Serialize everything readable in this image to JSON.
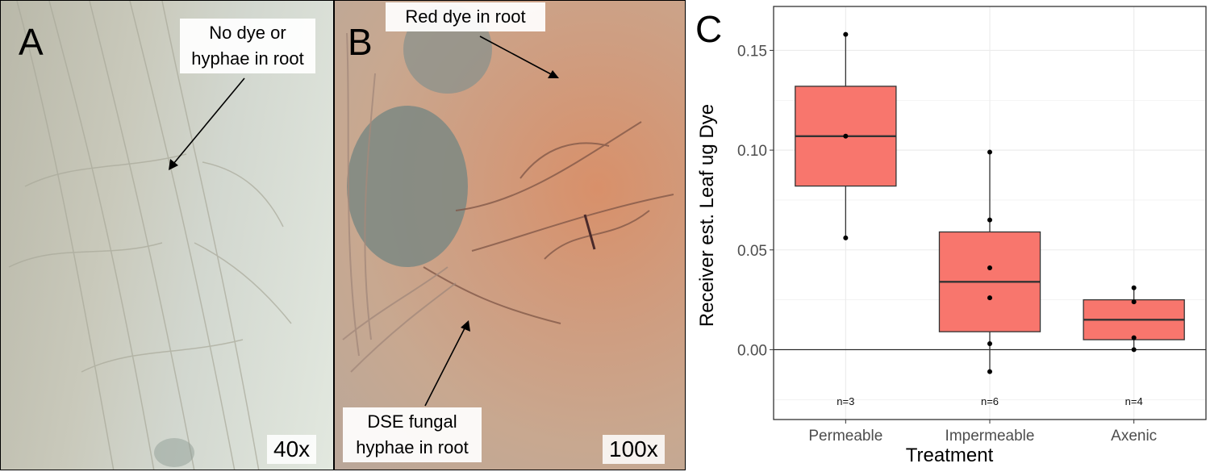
{
  "panel_a": {
    "letter": "A",
    "callout": "No dye or\nhyphae in root",
    "magnification": "40x"
  },
  "panel_b": {
    "letter": "B",
    "callout_top": "Red dye in root",
    "callout_bottom": "DSE fungal\nhyphae in root",
    "magnification": "100x"
  },
  "panel_c": {
    "letter": "C"
  },
  "colors": {
    "box_fill": "#F8766D",
    "panel_a_tint": "#d2d7cf",
    "panel_b_tint": "#cf9d80"
  },
  "chart_data": {
    "type": "box",
    "xlabel": "Treatment",
    "ylabel": "Receiver est. Leaf ug Dye",
    "ylim": [
      -0.035,
      0.172
    ],
    "yticks": [
      0.0,
      0.05,
      0.1,
      0.15
    ],
    "ytick_labels": [
      "0.00",
      "0.05",
      "0.10",
      "0.15"
    ],
    "grid": true,
    "hline": 0,
    "categories": [
      "Permeable",
      "Impermeable",
      "Axenic"
    ],
    "boxes": [
      {
        "category": "Permeable",
        "min": 0.056,
        "q1": 0.082,
        "median": 0.107,
        "q3": 0.132,
        "max": 0.158,
        "points": [
          0.158,
          0.107,
          0.056
        ],
        "n_label": "n=3"
      },
      {
        "category": "Impermeable",
        "min": -0.011,
        "q1": 0.009,
        "median": 0.034,
        "q3": 0.059,
        "max": 0.099,
        "points": [
          0.099,
          0.065,
          0.041,
          0.026,
          0.003,
          -0.011
        ],
        "n_label": "n=6"
      },
      {
        "category": "Axenic",
        "min": 0.0,
        "q1": 0.005,
        "median": 0.015,
        "q3": 0.025,
        "max": 0.031,
        "points": [
          0.031,
          0.024,
          0.006,
          0.0
        ],
        "n_label": "n=4"
      }
    ]
  }
}
